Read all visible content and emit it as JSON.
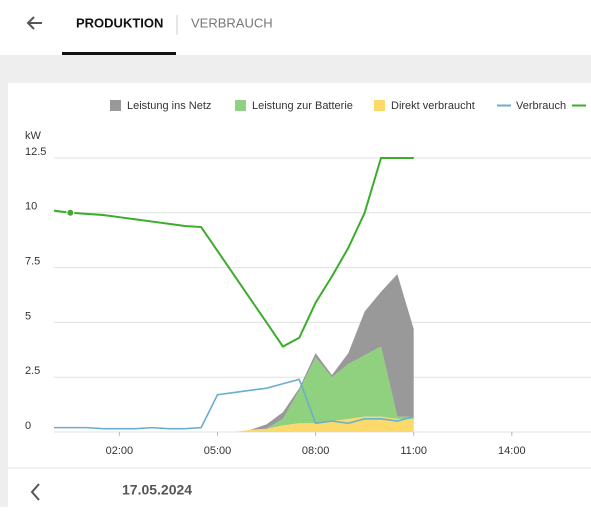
{
  "tabs": [
    "PRODUKTION",
    "VERBRAUCH"
  ],
  "chart_data": {
    "type": "area",
    "y_label": "kW",
    "x": [
      0,
      0.5,
      1,
      1.5,
      2,
      2.5,
      3,
      3.5,
      4,
      4.5,
      5,
      5.5,
      6,
      6.5,
      7,
      7.5,
      8,
      8.5,
      9,
      9.5,
      10,
      10.5,
      11
    ],
    "xlim": [
      0,
      16
    ],
    "xticks": [
      {
        "value": 2,
        "label": "02:00"
      },
      {
        "value": 5,
        "label": "05:00"
      },
      {
        "value": 8,
        "label": "08:00"
      },
      {
        "value": 11,
        "label": "11:00"
      },
      {
        "value": 14,
        "label": "14:00"
      }
    ],
    "ylim": [
      0,
      12.5
    ],
    "yticks": [
      0,
      2.5,
      5,
      7.5,
      10,
      12.5
    ],
    "grid": true,
    "series": [
      {
        "name": "Leistung ins Netz",
        "color": "#999999",
        "kind": "stack",
        "values": [
          0,
          0,
          0,
          0,
          0,
          0,
          0,
          0,
          0,
          0,
          0,
          0,
          0,
          0.2,
          0.3,
          0.1,
          0.2,
          0.1,
          0.5,
          2.0,
          2.5,
          6.5,
          4.0
        ]
      },
      {
        "name": "Leistung zur Batterie",
        "color": "#8fd17e",
        "kind": "stack",
        "values": [
          0,
          0,
          0,
          0,
          0,
          0,
          0,
          0,
          0,
          0,
          0,
          0,
          0,
          0,
          0.3,
          1.5,
          3.0,
          2.0,
          2.5,
          2.8,
          3.2,
          0.1,
          0.1
        ]
      },
      {
        "name": "Direkt verbraucht",
        "color": "#fcd96b",
        "kind": "stack",
        "values": [
          0,
          0,
          0,
          0,
          0,
          0,
          0,
          0,
          0,
          0,
          0,
          0,
          0.1,
          0.15,
          0.3,
          0.4,
          0.4,
          0.5,
          0.6,
          0.7,
          0.7,
          0.6,
          0.6
        ]
      },
      {
        "name": "Verbrauch",
        "color": "#6aaed0",
        "kind": "line",
        "values": [
          0.2,
          0.2,
          0.2,
          0.15,
          0.15,
          0.15,
          0.2,
          0.15,
          0.15,
          0.2,
          1.7,
          1.8,
          1.9,
          2.0,
          2.2,
          2.4,
          0.4,
          0.5,
          0.4,
          0.6,
          0.6,
          0.5,
          0.7
        ]
      },
      {
        "name": null,
        "color": "#3cac2c",
        "kind": "line",
        "values": [
          10.1,
          10.0,
          9.95,
          9.9,
          9.8,
          9.7,
          9.6,
          9.5,
          9.4,
          9.35,
          8.26,
          7.17,
          6.08,
          5.0,
          3.9,
          4.3,
          5.9,
          7.1,
          8.4,
          10.0,
          12.5,
          12.5,
          12.5
        ]
      }
    ]
  },
  "footer": {
    "date": "17.05.2024"
  }
}
